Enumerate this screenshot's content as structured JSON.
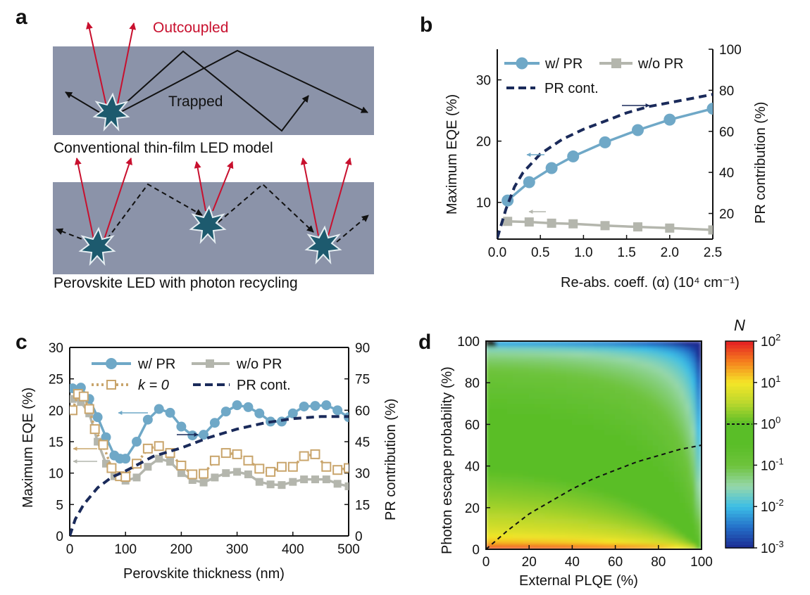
{
  "panels": {
    "a": "a",
    "b": "b",
    "c": "c",
    "d": "d"
  },
  "schematic": {
    "outcoupled": "Outcoupled",
    "trapped": "Trapped",
    "top_caption": "Conventional thin-film LED model",
    "bottom_caption": "Perovskite LED with photon recycling"
  },
  "colors": {
    "film": "#8b93a9",
    "ray_red": "#c8102e",
    "emitter": "#1d5a6e",
    "wPR": "#6fa8c7",
    "woPR": "#b4b6ad",
    "k0": "#c9a56c",
    "prcont": "#1a2a5a"
  },
  "chart_data": [
    {
      "type": "line",
      "panel": "b",
      "xlabel": "Re-abs. coeff. (α) (10⁴ cm⁻¹)",
      "ylabel": "Maximum EQE (%)",
      "y2label": "PR contribution (%)",
      "xlim": [
        0,
        2.5
      ],
      "xticks": [
        "0.0",
        "0.5",
        "1.0",
        "1.5",
        "2.0",
        "2.5"
      ],
      "ylim": [
        4,
        35
      ],
      "yticks": [
        10,
        20,
        30
      ],
      "y2lim": [
        7.5,
        100
      ],
      "y2ticks": [
        20,
        40,
        60,
        80,
        100
      ],
      "legend_position": "top-left",
      "series": [
        {
          "name": "w/ PR",
          "axis": "left",
          "marker": "circle",
          "x": [
            0.12,
            0.37,
            0.63,
            0.88,
            1.25,
            1.63,
            2.0,
            2.5
          ],
          "y": [
            10.3,
            13.3,
            15.6,
            17.5,
            19.8,
            21.8,
            23.5,
            25.3
          ]
        },
        {
          "name": "w/o PR",
          "axis": "left",
          "marker": "square",
          "x": [
            0.12,
            0.37,
            0.63,
            0.88,
            1.25,
            1.63,
            2.0,
            2.5
          ],
          "y": [
            6.9,
            6.8,
            6.6,
            6.5,
            6.2,
            6.0,
            5.8,
            5.5
          ]
        },
        {
          "name": "PR cont.",
          "axis": "right",
          "style": "dashed",
          "x": [
            0.0,
            0.05,
            0.1,
            0.2,
            0.3,
            0.5,
            0.75,
            1.0,
            1.25,
            1.5,
            1.75,
            2.0,
            2.25,
            2.5
          ],
          "y": [
            8,
            15,
            22,
            33,
            40,
            49,
            56,
            61,
            65,
            69,
            72,
            74,
            76,
            78
          ]
        }
      ]
    },
    {
      "type": "line",
      "panel": "c",
      "xlabel": "Perovskite thickness (nm)",
      "ylabel": "Maximum EQE (%)",
      "y2label": "PR contribution (%)",
      "xlim": [
        0,
        500
      ],
      "xticks": [
        0,
        100,
        200,
        300,
        400,
        500
      ],
      "ylim": [
        0,
        30
      ],
      "yticks": [
        0,
        5,
        10,
        15,
        20,
        25,
        30
      ],
      "y2lim": [
        0,
        90
      ],
      "y2ticks": [
        0,
        15,
        30,
        45,
        60,
        75,
        90
      ],
      "legend_position": "top",
      "series": [
        {
          "name": "w/ PR",
          "axis": "left",
          "marker": "circle",
          "x": [
            5,
            20,
            35,
            50,
            65,
            80,
            90,
            100,
            120,
            140,
            160,
            180,
            200,
            220,
            240,
            260,
            280,
            300,
            320,
            340,
            360,
            380,
            400,
            420,
            440,
            460,
            480,
            500
          ],
          "y": [
            23.5,
            23.6,
            21.8,
            18.9,
            15.7,
            12.8,
            12.3,
            12.3,
            15.0,
            18.5,
            20.2,
            19.6,
            17.4,
            16.0,
            16.1,
            18.0,
            19.8,
            20.8,
            20.5,
            19.5,
            18.2,
            18.2,
            19.5,
            20.6,
            20.7,
            20.8,
            20.0,
            18.9
          ]
        },
        {
          "name": "w/o PR",
          "axis": "left",
          "marker": "square",
          "x": [
            5,
            20,
            35,
            50,
            65,
            80,
            100,
            120,
            140,
            160,
            180,
            200,
            220,
            240,
            260,
            280,
            300,
            320,
            340,
            360,
            380,
            400,
            420,
            440,
            460,
            480,
            500
          ],
          "y": [
            21.8,
            21.3,
            19.5,
            15.0,
            11.5,
            9.5,
            8.8,
            9.3,
            11.0,
            12.3,
            11.8,
            10.0,
            8.9,
            8.5,
            9.3,
            10.0,
            10.2,
            9.8,
            8.6,
            8.2,
            8.1,
            8.6,
            9.0,
            9.0,
            9.0,
            8.3,
            7.9
          ]
        },
        {
          "name": "k = 0",
          "axis": "left",
          "marker": "open-square",
          "style": "dotted",
          "x": [
            5,
            15,
            25,
            35,
            45,
            60,
            75,
            90,
            100,
            120,
            140,
            160,
            180,
            200,
            220,
            240,
            260,
            280,
            300,
            320,
            340,
            360,
            380,
            400,
            420,
            440,
            460,
            480,
            500
          ],
          "y": [
            20.0,
            22.6,
            22.2,
            20.2,
            17.0,
            14.5,
            10.8,
            9.5,
            9.4,
            11.5,
            13.9,
            14.3,
            13.2,
            11.2,
            9.8,
            9.9,
            12.0,
            13.2,
            13.0,
            12.0,
            10.7,
            10.2,
            11.0,
            11.0,
            12.7,
            13.0,
            11.0,
            10.5,
            10.8
          ]
        },
        {
          "name": "PR cont.",
          "axis": "right",
          "style": "dashed",
          "x": [
            0,
            10,
            25,
            50,
            75,
            100,
            150,
            200,
            250,
            300,
            350,
            400,
            450,
            500
          ],
          "y": [
            0,
            8,
            15,
            23,
            28,
            31,
            38,
            42,
            47,
            51,
            54,
            56,
            57,
            57
          ]
        }
      ]
    },
    {
      "type": "heatmap",
      "panel": "d",
      "xlabel": "External PLQE (%)",
      "ylabel": "Photon escape probability (%)",
      "xlim": [
        0,
        100
      ],
      "xticks": [
        0,
        20,
        40,
        60,
        80,
        100
      ],
      "ylim": [
        0,
        100
      ],
      "yticks": [
        0,
        20,
        40,
        60,
        80,
        100
      ],
      "colorbar_title": "N",
      "colorbar_ticks": [
        {
          "base": "10",
          "exp": "2"
        },
        {
          "base": "10",
          "exp": "1"
        },
        {
          "base": "10",
          "exp": "0"
        },
        {
          "base": "10",
          "exp": "-1"
        },
        {
          "base": "10",
          "exp": "-2"
        },
        {
          "base": "10",
          "exp": "-3"
        }
      ],
      "colorbar_log_range": [
        -3,
        2
      ],
      "contour_N1": {
        "x": [
          0,
          10,
          20,
          30,
          40,
          50,
          60,
          70,
          80,
          90,
          100
        ],
        "y": [
          0,
          9,
          17,
          23,
          29,
          34,
          38,
          42,
          45,
          48,
          50
        ]
      }
    }
  ]
}
